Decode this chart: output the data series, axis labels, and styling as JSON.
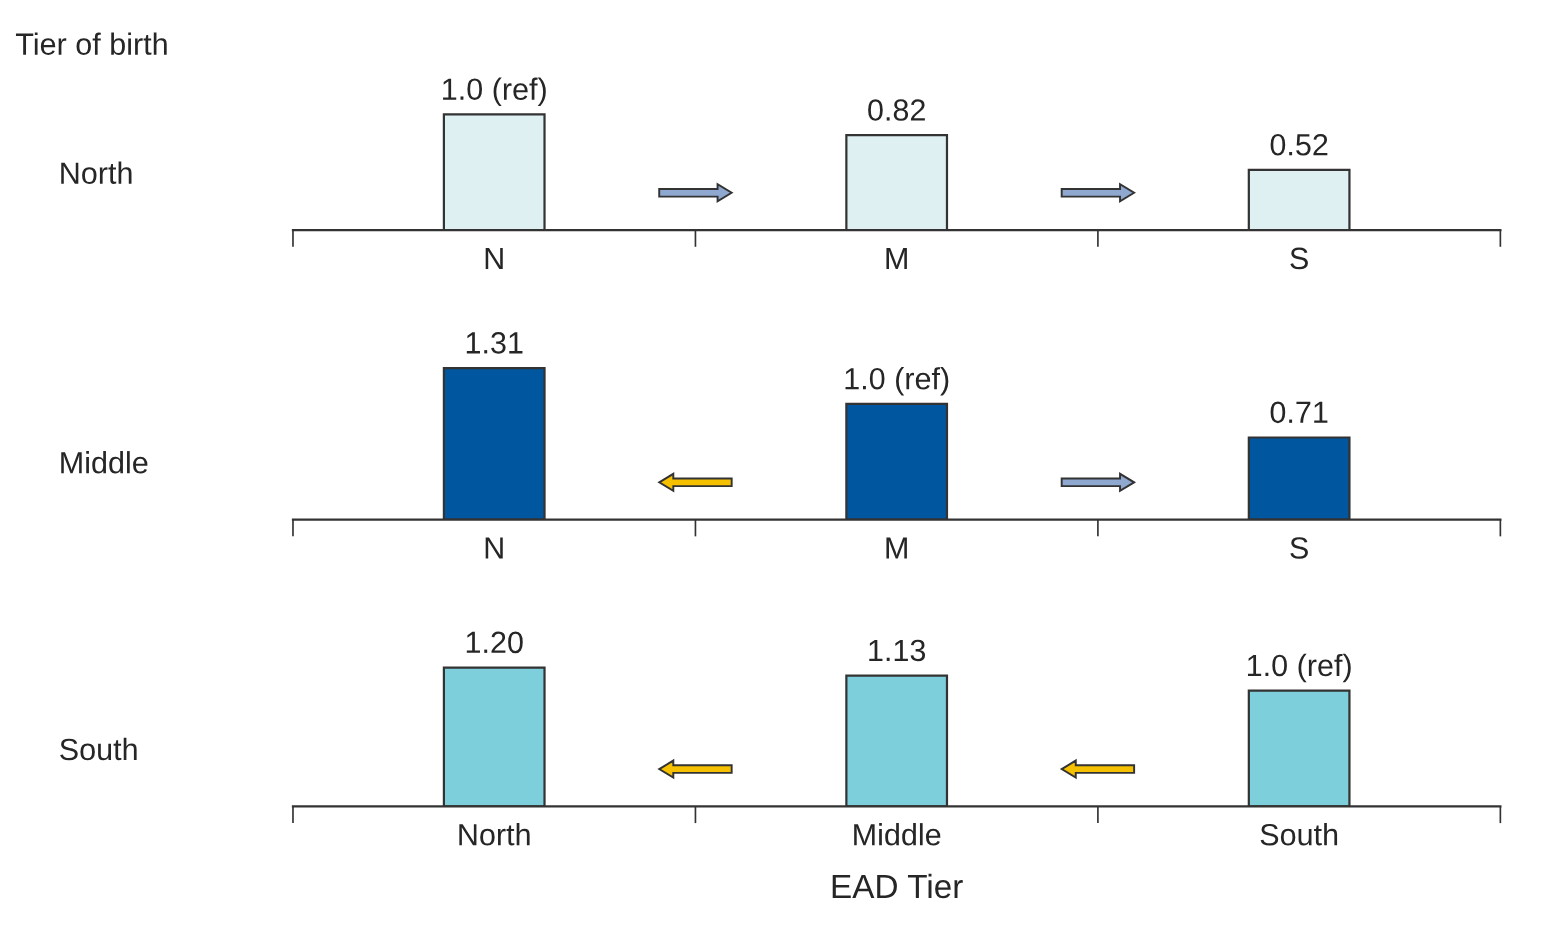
{
  "chart_data": [
    {
      "type": "bar",
      "title": "Tier of birth",
      "ylabel": "North",
      "categories": [
        "N",
        "M",
        "S"
      ],
      "values": [
        1.0,
        0.82,
        0.52
      ],
      "value_labels": [
        "1.0 (ref)",
        "0.82",
        "0.52"
      ],
      "colors": [
        "#dff0f2",
        "#dff0f2",
        "#dff0f2"
      ]
    },
    {
      "type": "bar",
      "ylabel": "Middle",
      "categories": [
        "N",
        "M",
        "S"
      ],
      "values": [
        1.31,
        1.0,
        0.71
      ],
      "value_labels": [
        "1.31",
        "1.0 (ref)",
        "0.71"
      ],
      "colors": [
        "#0057a0",
        "#0057a0",
        "#0057a0"
      ]
    },
    {
      "type": "bar",
      "ylabel": "South",
      "xlabel": "EAD Tier",
      "categories": [
        "North",
        "Middle",
        "South"
      ],
      "values": [
        1.2,
        1.13,
        1.0
      ],
      "value_labels": [
        "1.20",
        "1.13",
        "1.0 (ref)"
      ],
      "colors": [
        "#7ecfdc",
        "#7ecfdc",
        "#7ecfdc"
      ]
    }
  ]
}
